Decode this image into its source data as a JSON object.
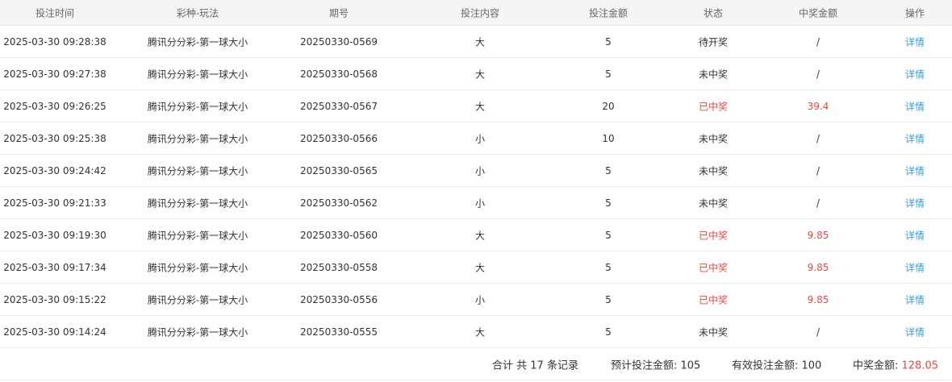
{
  "headers": [
    "投注时间",
    "彩种-玩法",
    "期号",
    "投注内容",
    "投注金额",
    "状态",
    "中奖金额",
    "操作"
  ],
  "rows": [
    {
      "time": "2025-03-30 09:28:38",
      "game": "腾讯分分彩-第一球大小",
      "issue": "20250330-0569",
      "content": "大",
      "amount": "5",
      "status": "待开奖",
      "win": "/",
      "action": "详情",
      "won": false
    },
    {
      "time": "2025-03-30 09:27:38",
      "game": "腾讯分分彩-第一球大小",
      "issue": "20250330-0568",
      "content": "大",
      "amount": "5",
      "status": "未中奖",
      "win": "/",
      "action": "详情",
      "won": false
    },
    {
      "time": "2025-03-30 09:26:25",
      "game": "腾讯分分彩-第一球大小",
      "issue": "20250330-0567",
      "content": "大",
      "amount": "20",
      "status": "已中奖",
      "win": "39.4",
      "action": "详情",
      "won": true
    },
    {
      "time": "2025-03-30 09:25:38",
      "game": "腾讯分分彩-第一球大小",
      "issue": "20250330-0566",
      "content": "小",
      "amount": "10",
      "status": "未中奖",
      "win": "/",
      "action": "详情",
      "won": false
    },
    {
      "time": "2025-03-30 09:24:42",
      "game": "腾讯分分彩-第一球大小",
      "issue": "20250330-0565",
      "content": "小",
      "amount": "5",
      "status": "未中奖",
      "win": "/",
      "action": "详情",
      "won": false
    },
    {
      "time": "2025-03-30 09:21:33",
      "game": "腾讯分分彩-第一球大小",
      "issue": "20250330-0562",
      "content": "小",
      "amount": "5",
      "status": "未中奖",
      "win": "/",
      "action": "详情",
      "won": false
    },
    {
      "time": "2025-03-30 09:19:30",
      "game": "腾讯分分彩-第一球大小",
      "issue": "20250330-0560",
      "content": "大",
      "amount": "5",
      "status": "已中奖",
      "win": "9.85",
      "action": "详情",
      "won": true
    },
    {
      "time": "2025-03-30 09:17:34",
      "game": "腾讯分分彩-第一球大小",
      "issue": "20250330-0558",
      "content": "大",
      "amount": "5",
      "status": "已中奖",
      "win": "9.85",
      "action": "详情",
      "won": true
    },
    {
      "time": "2025-03-30 09:15:22",
      "game": "腾讯分分彩-第一球大小",
      "issue": "20250330-0556",
      "content": "小",
      "amount": "5",
      "status": "已中奖",
      "win": "9.85",
      "action": "详情",
      "won": true
    },
    {
      "time": "2025-03-30 09:14:24",
      "game": "腾讯分分彩-第一球大小",
      "issue": "20250330-0555",
      "content": "大",
      "amount": "5",
      "status": "未中奖",
      "win": "/",
      "action": "详情",
      "won": false
    }
  ],
  "footer": {
    "total": "合计 共 17 条记录",
    "expected_label": "预计投注金额: ",
    "expected": "105",
    "valid_label": "有效投注金额: ",
    "valid": "100",
    "win_label": "中奖金额: ",
    "win": "128.05"
  },
  "colors": {
    "win": "#e8463a",
    "link": "#3a9de0"
  }
}
